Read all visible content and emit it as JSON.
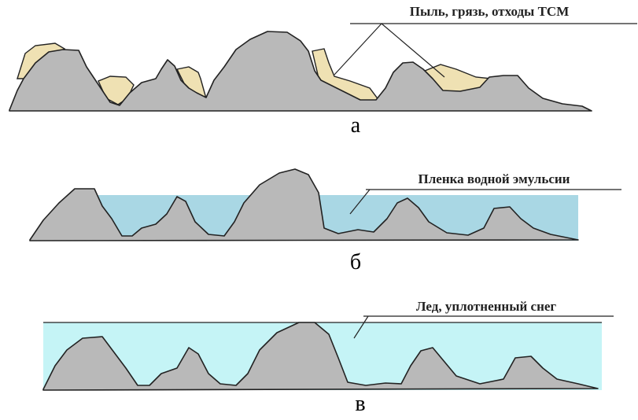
{
  "panels": [
    {
      "label": "Пыль, грязь, отходы ТСМ",
      "caption": "а"
    },
    {
      "label": "Пленка водной эмульсии",
      "caption": "б"
    },
    {
      "label": "Лед, уплотненный снег",
      "caption": "в"
    }
  ]
}
